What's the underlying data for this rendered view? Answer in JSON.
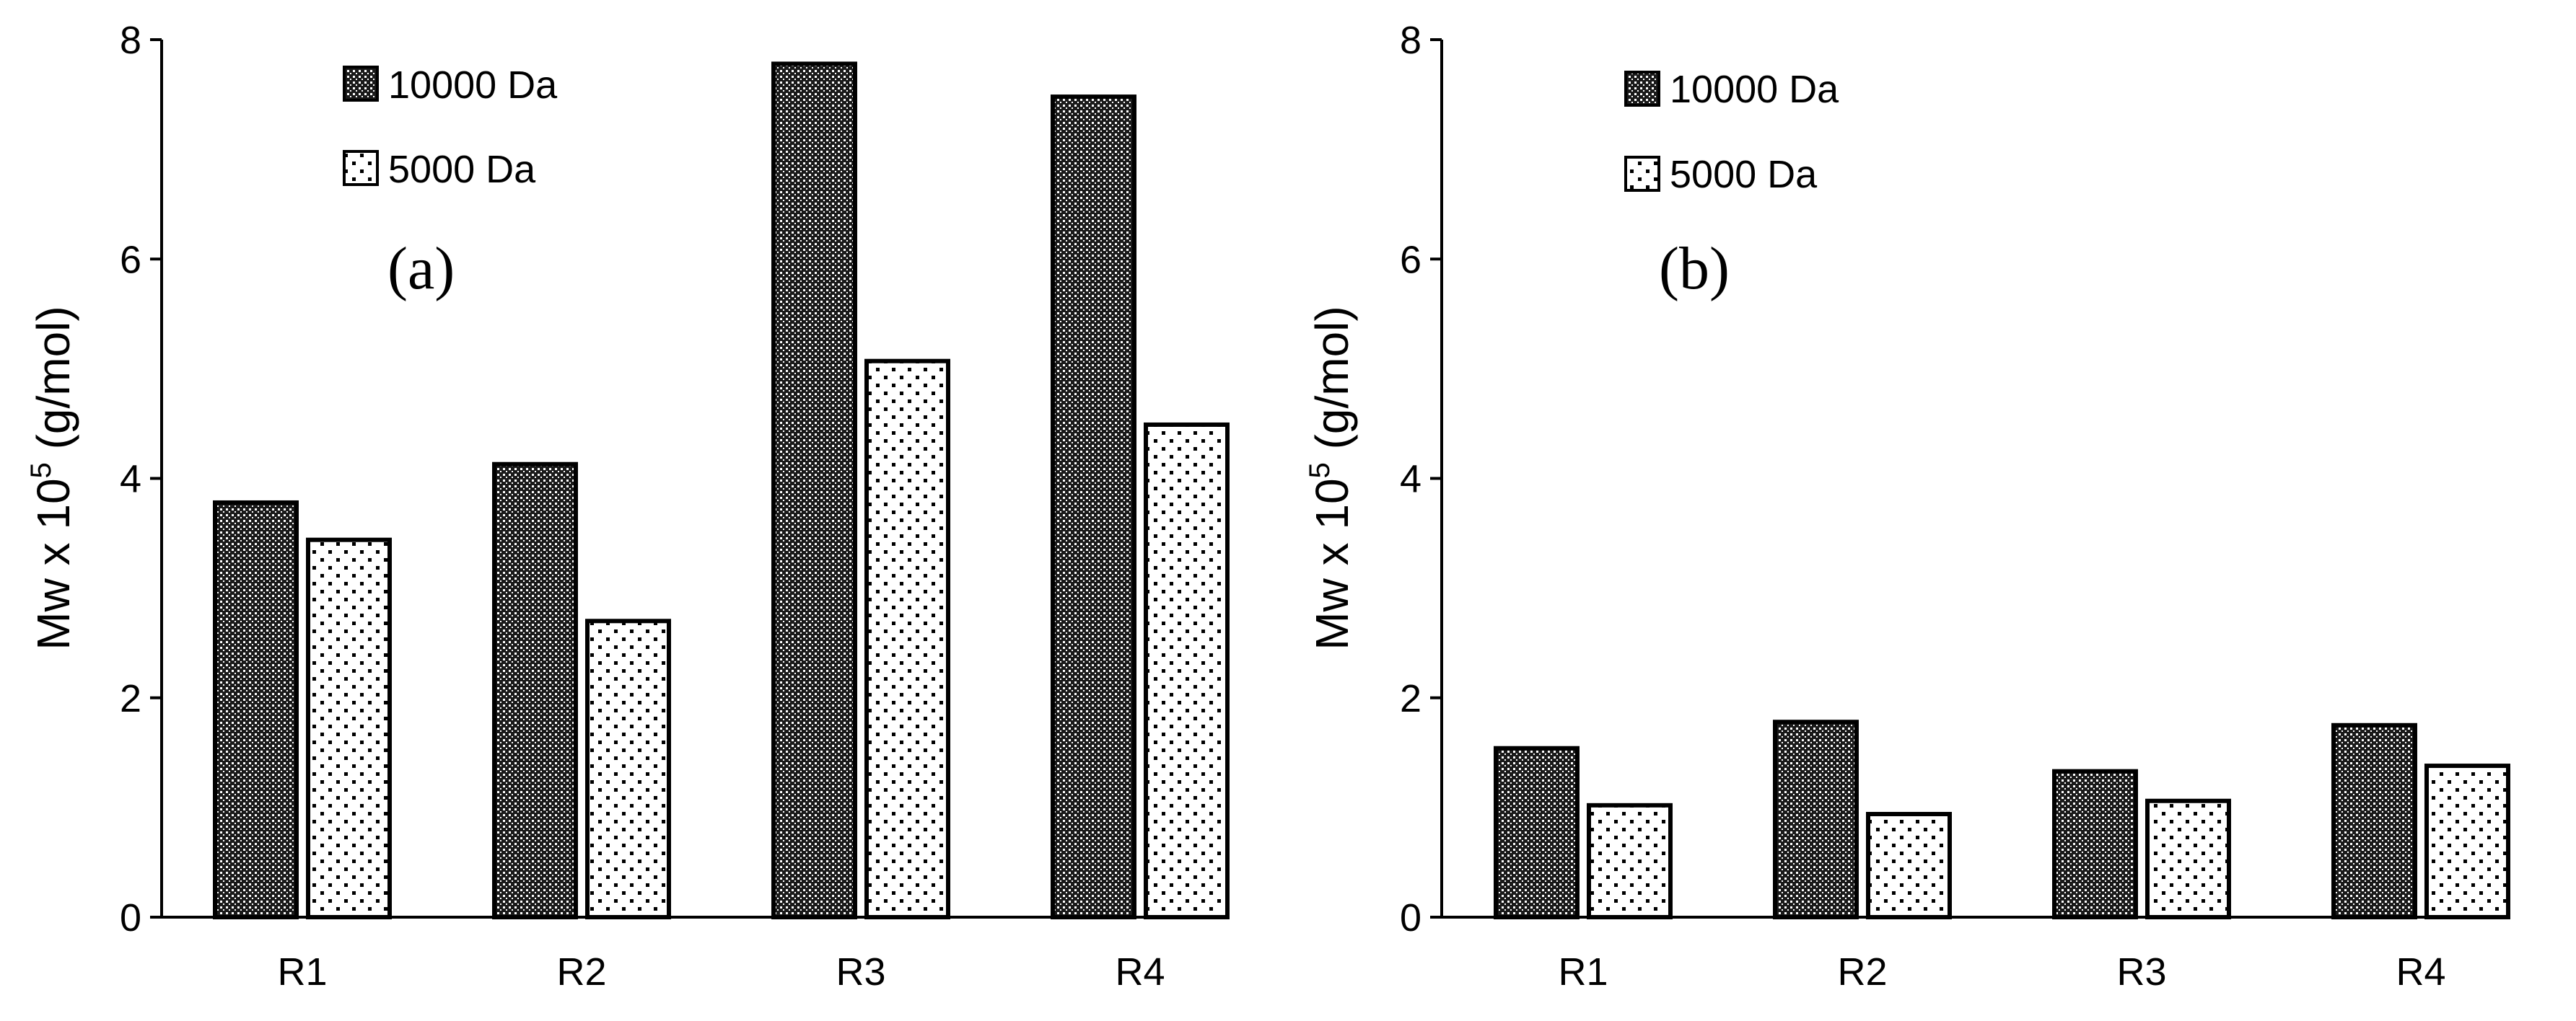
{
  "chart_data": [
    {
      "type": "bar",
      "panel_label": "(a)",
      "categories": [
        "R1",
        "R2",
        "R3",
        "R4"
      ],
      "series": [
        {
          "name": "10000 Da",
          "values": [
            3.78,
            4.13,
            7.78,
            7.48
          ]
        },
        {
          "name": "5000 Da",
          "values": [
            3.44,
            2.7,
            5.07,
            4.49
          ]
        }
      ],
      "ylabel": {
        "main": "Mw x 10",
        "sup": "5",
        "unit": " (g/mol)"
      },
      "ylim": [
        0,
        8
      ],
      "yticks": [
        "0",
        "2",
        "4",
        "6",
        "8"
      ],
      "legend_position": "top-left"
    },
    {
      "type": "bar",
      "panel_label": "(b)",
      "categories": [
        "R1",
        "R2",
        "R3",
        "R4"
      ],
      "series": [
        {
          "name": "10000 Da",
          "values": [
            1.54,
            1.78,
            1.33,
            1.75
          ]
        },
        {
          "name": "5000 Da",
          "values": [
            1.02,
            0.94,
            1.06,
            1.38
          ]
        }
      ],
      "ylabel": {
        "main": "Mw x 10",
        "sup": "5",
        "unit": " (g/mol)"
      },
      "ylim": [
        0,
        8
      ],
      "yticks": [
        "0",
        "2",
        "4",
        "6",
        "8"
      ],
      "legend_position": "top-left"
    }
  ]
}
